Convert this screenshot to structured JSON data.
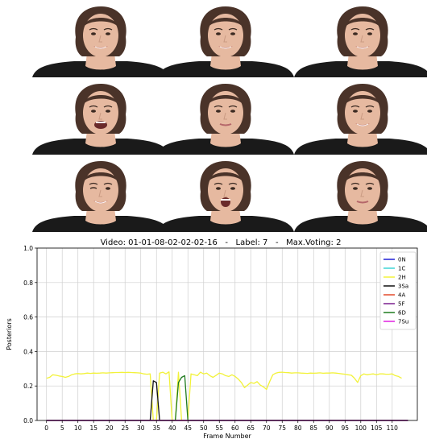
{
  "frames": [
    {
      "expression": "smile"
    },
    {
      "expression": "smile"
    },
    {
      "expression": "smile"
    },
    {
      "expression": "laugh"
    },
    {
      "expression": "neutral-smile"
    },
    {
      "expression": "smile"
    },
    {
      "expression": "wink-smile"
    },
    {
      "expression": "open-mouth"
    },
    {
      "expression": "neutral-smile"
    }
  ],
  "colors": {
    "hair": "#4a3329",
    "skin": "#e6b9a0",
    "shirt": "#1a1a1a",
    "lips": "#b5676a",
    "eye": "#3b2a22"
  },
  "chart_data": {
    "type": "line",
    "title": "Video: 01-01-08-02-02-02-16   -   Label: 7   -   Max.Voting: 2",
    "xlabel": "Frame Number",
    "ylabel": "Posteriors",
    "xlim": [
      -3,
      118
    ],
    "ylim": [
      0,
      1
    ],
    "xticks": [
      0,
      5,
      10,
      15,
      20,
      25,
      30,
      35,
      40,
      45,
      50,
      55,
      60,
      65,
      70,
      75,
      80,
      85,
      90,
      95,
      100,
      105,
      110
    ],
    "yticks": [
      0.0,
      0.2,
      0.4,
      0.6,
      0.8,
      1.0
    ],
    "ytick_labels": [
      "0.0",
      "0.2",
      "0.4",
      "0.6",
      "0.8",
      "1.0"
    ],
    "grid": true,
    "legend_position": "top-right",
    "series": [
      {
        "name": "0N",
        "color": "#1f1fd6",
        "points": [
          [
            0,
            0
          ],
          [
            115,
            0
          ]
        ]
      },
      {
        "name": "1C",
        "color": "#3fd6d6",
        "points": [
          [
            0,
            0
          ],
          [
            115,
            0
          ]
        ]
      },
      {
        "name": "2H",
        "color": "#f2f23a",
        "points": [
          [
            0,
            0.245
          ],
          [
            1,
            0.25
          ],
          [
            2,
            0.265
          ],
          [
            3,
            0.262
          ],
          [
            4,
            0.258
          ],
          [
            5,
            0.255
          ],
          [
            6,
            0.25
          ],
          [
            7,
            0.255
          ],
          [
            8,
            0.265
          ],
          [
            9,
            0.27
          ],
          [
            10,
            0.272
          ],
          [
            11,
            0.27
          ],
          [
            12,
            0.272
          ],
          [
            13,
            0.275
          ],
          [
            14,
            0.273
          ],
          [
            15,
            0.275
          ],
          [
            16,
            0.274
          ],
          [
            17,
            0.275
          ],
          [
            18,
            0.276
          ],
          [
            19,
            0.275
          ],
          [
            20,
            0.276
          ],
          [
            21,
            0.277
          ],
          [
            22,
            0.278
          ],
          [
            23,
            0.278
          ],
          [
            24,
            0.279
          ],
          [
            25,
            0.278
          ],
          [
            26,
            0.279
          ],
          [
            27,
            0.278
          ],
          [
            28,
            0.277
          ],
          [
            29,
            0.276
          ],
          [
            30,
            0.275
          ],
          [
            31,
            0.27
          ],
          [
            32,
            0.268
          ],
          [
            33,
            0.27
          ],
          [
            34,
            0.0
          ],
          [
            35,
            0.0
          ],
          [
            36,
            0.275
          ],
          [
            37,
            0.28
          ],
          [
            38,
            0.27
          ],
          [
            39,
            0.282
          ],
          [
            40,
            0.0
          ],
          [
            41,
            0.0
          ],
          [
            42,
            0.28
          ],
          [
            43,
            0.0
          ],
          [
            44,
            0.0
          ],
          [
            45,
            0.0
          ],
          [
            46,
            0.27
          ],
          [
            47,
            0.265
          ],
          [
            48,
            0.26
          ],
          [
            49,
            0.28
          ],
          [
            50,
            0.27
          ],
          [
            51,
            0.275
          ],
          [
            52,
            0.26
          ],
          [
            53,
            0.25
          ],
          [
            54,
            0.262
          ],
          [
            55,
            0.275
          ],
          [
            56,
            0.27
          ],
          [
            57,
            0.26
          ],
          [
            58,
            0.255
          ],
          [
            59,
            0.265
          ],
          [
            60,
            0.255
          ],
          [
            61,
            0.24
          ],
          [
            62,
            0.22
          ],
          [
            63,
            0.19
          ],
          [
            64,
            0.205
          ],
          [
            65,
            0.22
          ],
          [
            66,
            0.215
          ],
          [
            67,
            0.225
          ],
          [
            68,
            0.205
          ],
          [
            69,
            0.195
          ],
          [
            70,
            0.18
          ],
          [
            71,
            0.225
          ],
          [
            72,
            0.265
          ],
          [
            73,
            0.275
          ],
          [
            74,
            0.279
          ],
          [
            75,
            0.28
          ],
          [
            76,
            0.278
          ],
          [
            77,
            0.277
          ],
          [
            78,
            0.275
          ],
          [
            79,
            0.276
          ],
          [
            80,
            0.276
          ],
          [
            81,
            0.275
          ],
          [
            82,
            0.274
          ],
          [
            83,
            0.273
          ],
          [
            84,
            0.275
          ],
          [
            85,
            0.274
          ],
          [
            86,
            0.275
          ],
          [
            87,
            0.276
          ],
          [
            88,
            0.274
          ],
          [
            89,
            0.275
          ],
          [
            90,
            0.275
          ],
          [
            91,
            0.276
          ],
          [
            92,
            0.275
          ],
          [
            93,
            0.273
          ],
          [
            94,
            0.27
          ],
          [
            95,
            0.268
          ],
          [
            96,
            0.265
          ],
          [
            97,
            0.262
          ],
          [
            98,
            0.245
          ],
          [
            99,
            0.22
          ],
          [
            100,
            0.26
          ],
          [
            101,
            0.27
          ],
          [
            102,
            0.265
          ],
          [
            103,
            0.268
          ],
          [
            104,
            0.27
          ],
          [
            105,
            0.265
          ],
          [
            106,
            0.27
          ],
          [
            107,
            0.27
          ],
          [
            108,
            0.268
          ],
          [
            109,
            0.268
          ],
          [
            110,
            0.27
          ],
          [
            111,
            0.26
          ],
          [
            112,
            0.255
          ],
          [
            113,
            0.245
          ]
        ]
      },
      {
        "name": "3Sa",
        "color": "#111111",
        "points": [
          [
            0,
            0
          ],
          [
            33,
            0
          ],
          [
            34,
            0.23
          ],
          [
            35,
            0.22
          ],
          [
            36,
            0
          ],
          [
            115,
            0
          ]
        ]
      },
      {
        "name": "4A",
        "color": "#e34a2a",
        "points": [
          [
            0,
            0
          ],
          [
            115,
            0
          ]
        ]
      },
      {
        "name": "5F",
        "color": "#7b1f8e",
        "points": [
          [
            0,
            0
          ],
          [
            115,
            0
          ]
        ]
      },
      {
        "name": "6D",
        "color": "#1e7a1e",
        "points": [
          [
            0,
            0
          ],
          [
            41,
            0
          ],
          [
            42,
            0.22
          ],
          [
            43,
            0.25
          ],
          [
            44,
            0.26
          ],
          [
            45,
            0
          ],
          [
            115,
            0
          ]
        ]
      },
      {
        "name": "7Su",
        "color": "#e020e0",
        "points": [
          [
            0,
            0
          ],
          [
            115,
            0
          ]
        ]
      }
    ]
  }
}
